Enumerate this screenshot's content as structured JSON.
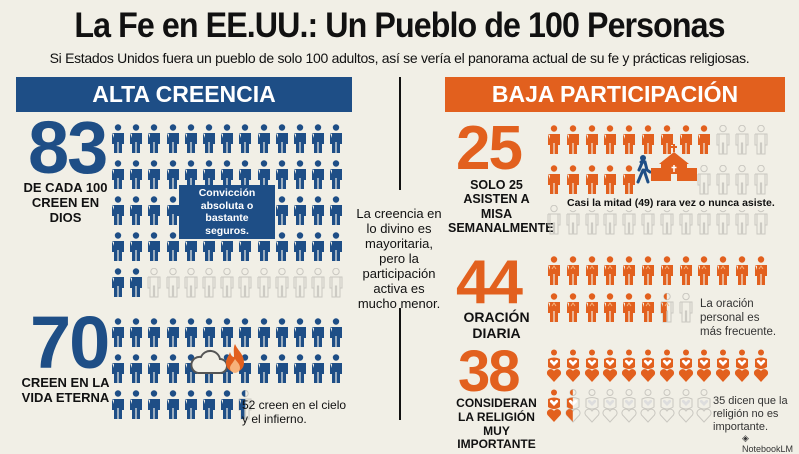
{
  "title": "La Fe en EE.UU.: Un Pueblo de 100 Personas",
  "subtitle": "Si Estados Unidos fuera un pueblo de solo 100 adultos, así se vería el panorama actual de su fe y prácticas religiosas.",
  "colors": {
    "blue": "#1e4e86",
    "orange": "#e2601e",
    "empty": "#c9c7c0",
    "background": "#f1efe6"
  },
  "left": {
    "header": "ALTA CREENCIA",
    "god": {
      "value": "83",
      "label": "DE CADA 100 CREEN EN DIOS",
      "callout": "Convicción absoluta o bastante seguros.",
      "icon": "person-icon"
    },
    "eternal": {
      "value": "70",
      "label": "CREEN EN LA VIDA ETERNA",
      "note": "52 creen en el cielo y el infierno.",
      "icons": [
        "cloud-icon",
        "fire-icon"
      ]
    }
  },
  "center": {
    "text": "La creencia en lo divino es mayoritaria, pero la participación activa es mucho menor."
  },
  "right": {
    "header": "BAJA PARTICIPACIÓN",
    "mass": {
      "value": "25",
      "label": "SOLO 25 ASISTEN A MISA SEMANALMENTE",
      "note": "Casi la mitad (49) rara vez o nunca asiste.",
      "icons": [
        "walking-person-icon",
        "church-icon"
      ]
    },
    "prayer": {
      "value": "44",
      "label": "ORACIÓN DIARIA",
      "note": "La oración personal es más frecuente.",
      "icon": "praying-person-icon"
    },
    "importance": {
      "value": "38",
      "label": "CONSIDERAN LA RELIGIÓN MUY IMPORTANTE",
      "note": "35 dicen que la religión no es importante.",
      "icon": "heart-person-icon"
    }
  },
  "footer": {
    "brand": "NotebookLM"
  }
}
